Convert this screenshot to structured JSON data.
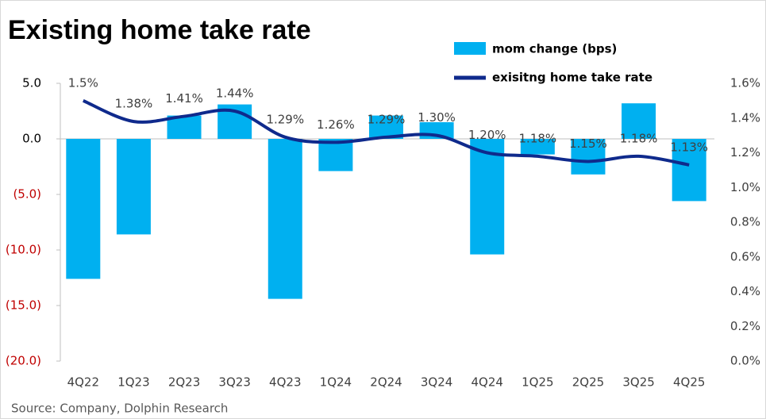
{
  "chart_data": {
    "type": "bar-line",
    "title": "Existing home take rate",
    "source": "Source: Company, Dolphin Research",
    "categories": [
      "4Q22",
      "1Q23",
      "2Q23",
      "3Q23",
      "4Q23",
      "1Q24",
      "2Q24",
      "3Q24",
      "4Q24",
      "1Q25",
      "2Q25",
      "3Q25",
      "4Q25"
    ],
    "series": [
      {
        "name": "mom change  (bps)",
        "type": "bar",
        "color": "#00b0f0",
        "values": [
          -12.6,
          -8.6,
          2.1,
          3.1,
          -14.4,
          -2.9,
          2.1,
          1.5,
          -10.4,
          -1.4,
          -3.2,
          3.2,
          -5.6
        ]
      },
      {
        "name": "exisitng home take rate",
        "type": "line",
        "axis": "y2",
        "color": "#0f2a8c",
        "values": [
          1.5,
          1.38,
          1.41,
          1.44,
          1.29,
          1.26,
          1.29,
          1.3,
          1.2,
          1.18,
          1.15,
          1.18,
          1.13
        ],
        "value_labels": [
          "1.5%",
          "1.38%",
          "1.41%",
          "1.44%",
          "1.29%",
          "1.26%",
          "1.29%",
          "1.30%",
          "1.20%",
          "1.18%",
          "1.15%",
          "1.18%",
          "1.13%"
        ]
      }
    ],
    "ylim": [
      -20,
      5
    ],
    "yticks": [
      {
        "value": 5,
        "label": "5.0"
      },
      {
        "value": 0,
        "label": "0.0"
      },
      {
        "value": -5,
        "label": "(5.0)"
      },
      {
        "value": -10,
        "label": "(10.0)"
      },
      {
        "value": -15,
        "label": "(15.0)"
      },
      {
        "value": -20,
        "label": "(20.0)"
      }
    ],
    "negative_tick_color": "#c00000",
    "y2lim": [
      0,
      1.6
    ],
    "y2ticks": [
      {
        "value": 0,
        "label": "0.0%"
      },
      {
        "value": 0.2,
        "label": "0.2%"
      },
      {
        "value": 0.4,
        "label": "0.4%"
      },
      {
        "value": 0.6,
        "label": "0.6%"
      },
      {
        "value": 0.8,
        "label": "0.8%"
      },
      {
        "value": 1.0,
        "label": "1.0%"
      },
      {
        "value": 1.2,
        "label": "1.2%"
      },
      {
        "value": 1.4,
        "label": "1.4%"
      },
      {
        "value": 1.6,
        "label": "1.6%"
      }
    ]
  }
}
